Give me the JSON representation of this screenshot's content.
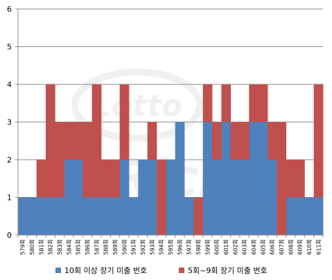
{
  "chart_data": {
    "type": "bar",
    "stacked": true,
    "categories": [
      "579회",
      "580회",
      "581회",
      "582회",
      "583회",
      "584회",
      "585회",
      "586회",
      "587회",
      "588회",
      "589회",
      "590회",
      "591회",
      "592회",
      "593회",
      "594회",
      "595회",
      "596회",
      "597회",
      "598회",
      "599회",
      "600회",
      "601회",
      "602회",
      "603회",
      "604회",
      "605회",
      "606회",
      "607회",
      "608회",
      "609회",
      "610회",
      "611회"
    ],
    "series": [
      {
        "name": "10회 이상 장기 미출 번호",
        "color": "#4f81bd",
        "values": [
          1,
          1,
          1,
          1,
          1,
          2,
          2,
          1,
          1,
          1,
          1,
          2,
          1,
          2,
          2,
          0,
          2,
          3,
          1,
          0,
          3,
          2,
          3,
          2,
          2,
          3,
          3,
          2,
          0,
          1,
          1,
          1,
          1
        ]
      },
      {
        "name": "5회~9회 장기 미출 번호",
        "color": "#c0504d",
        "values": [
          0,
          0,
          1,
          3,
          2,
          1,
          1,
          2,
          3,
          1,
          1,
          2,
          0,
          0,
          1,
          2,
          0,
          0,
          0,
          1,
          1,
          1,
          1,
          1,
          1,
          1,
          1,
          1,
          3,
          1,
          1,
          0,
          3
        ]
      }
    ],
    "ylim": [
      0,
      6
    ],
    "yticks": [
      0,
      1,
      2,
      3,
      4,
      5,
      6
    ],
    "grid": true,
    "legend_position": "bottom",
    "xlabel": "",
    "ylabel": "",
    "title": ""
  }
}
